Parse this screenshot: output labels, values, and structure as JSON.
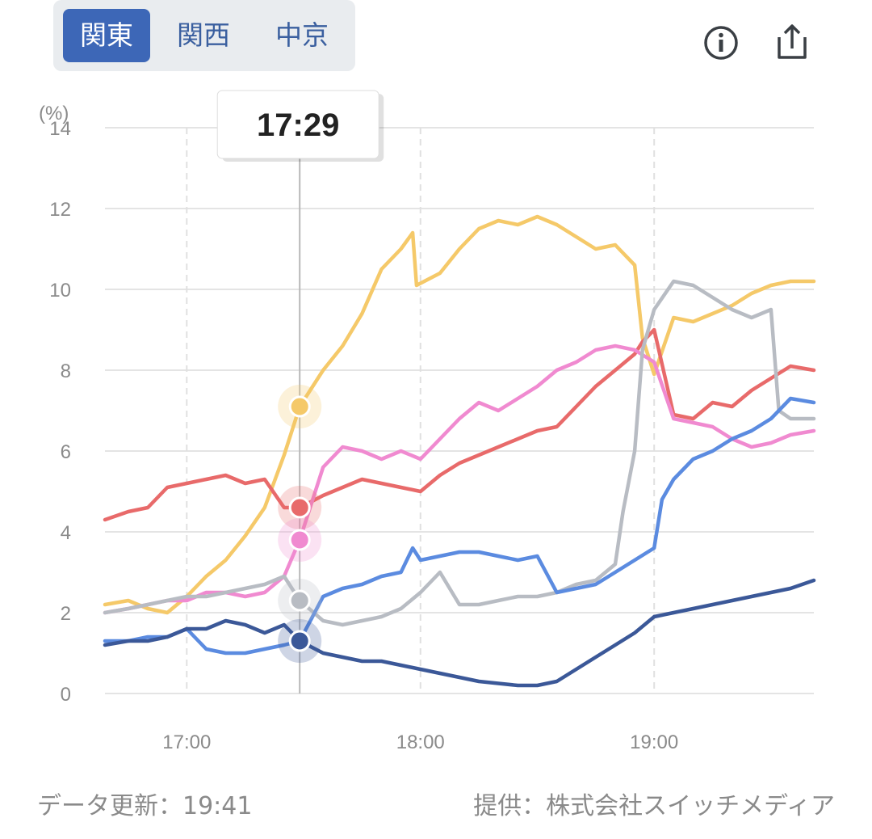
{
  "tabs": [
    {
      "label": "関東",
      "active": true
    },
    {
      "label": "関西",
      "active": false
    },
    {
      "label": "中京",
      "active": false
    }
  ],
  "icons": {
    "info": "info-icon",
    "share": "share-icon"
  },
  "footer": {
    "updated": "データ更新：19:41",
    "provider": "提供：株式会社スイッチメディア"
  },
  "chart_data": {
    "type": "line",
    "ylabel": "(%)",
    "ylim": [
      0,
      14
    ],
    "yticks": [
      0,
      2,
      4,
      6,
      8,
      10,
      12,
      14
    ],
    "xlim": [
      "16:39",
      "19:41"
    ],
    "xticks": [
      "17:00",
      "18:00",
      "19:00"
    ],
    "grid": true,
    "cursor": {
      "time": "17:29",
      "values": [
        7.1,
        4.6,
        3.8,
        2.3,
        1.3
      ]
    },
    "series": [
      {
        "color": "#f5c969",
        "x": [
          "16:39",
          "16:45",
          "16:50",
          "16:55",
          "17:00",
          "17:05",
          "17:10",
          "17:15",
          "17:20",
          "17:25",
          "17:29",
          "17:35",
          "17:40",
          "17:45",
          "17:50",
          "17:55",
          "17:58",
          "17:59",
          "18:05",
          "18:10",
          "18:15",
          "18:20",
          "18:25",
          "18:30",
          "18:35",
          "18:40",
          "18:45",
          "18:50",
          "18:52",
          "18:55",
          "18:57",
          "19:00",
          "19:05",
          "19:10",
          "19:15",
          "19:20",
          "19:25",
          "19:30",
          "19:35",
          "19:41"
        ],
        "values": [
          2.2,
          2.3,
          2.1,
          2.0,
          2.4,
          2.9,
          3.3,
          3.9,
          4.6,
          5.9,
          7.1,
          8.0,
          8.6,
          9.4,
          10.5,
          11.0,
          11.4,
          10.1,
          10.4,
          11.0,
          11.5,
          11.7,
          11.6,
          11.8,
          11.6,
          11.3,
          11.0,
          11.1,
          10.9,
          10.6,
          8.8,
          7.9,
          9.3,
          9.2,
          9.4,
          9.6,
          9.9,
          10.1,
          10.2,
          10.2
        ]
      },
      {
        "color": "#e86a6a",
        "x": [
          "16:39",
          "16:45",
          "16:50",
          "16:55",
          "17:00",
          "17:05",
          "17:10",
          "17:15",
          "17:20",
          "17:25",
          "17:29",
          "17:35",
          "17:40",
          "17:45",
          "17:50",
          "17:55",
          "18:00",
          "18:05",
          "18:10",
          "18:15",
          "18:20",
          "18:25",
          "18:30",
          "18:35",
          "18:40",
          "18:45",
          "18:50",
          "18:55",
          "18:57",
          "19:00",
          "19:05",
          "19:10",
          "19:15",
          "19:20",
          "19:25",
          "19:30",
          "19:35",
          "19:41"
        ],
        "values": [
          4.3,
          4.5,
          4.6,
          5.1,
          5.2,
          5.3,
          5.4,
          5.2,
          5.3,
          4.6,
          4.6,
          4.9,
          5.1,
          5.3,
          5.2,
          5.1,
          5.0,
          5.4,
          5.7,
          5.9,
          6.1,
          6.3,
          6.5,
          6.6,
          7.1,
          7.6,
          8.0,
          8.4,
          8.7,
          9.0,
          6.9,
          6.8,
          7.2,
          7.1,
          7.5,
          7.8,
          8.1,
          8.0
        ]
      },
      {
        "color": "#f08ad0",
        "x": [
          "16:39",
          "16:45",
          "16:50",
          "16:55",
          "17:00",
          "17:05",
          "17:10",
          "17:15",
          "17:20",
          "17:25",
          "17:29",
          "17:35",
          "17:40",
          "17:45",
          "17:50",
          "17:55",
          "18:00",
          "18:05",
          "18:10",
          "18:15",
          "18:20",
          "18:25",
          "18:30",
          "18:35",
          "18:40",
          "18:45",
          "18:50",
          "18:55",
          "19:00",
          "19:05",
          "19:10",
          "19:15",
          "19:20",
          "19:25",
          "19:30",
          "19:35",
          "19:41"
        ],
        "values": [
          2.0,
          2.1,
          2.2,
          2.3,
          2.3,
          2.5,
          2.5,
          2.4,
          2.5,
          2.9,
          3.8,
          5.6,
          6.1,
          6.0,
          5.8,
          6.0,
          5.8,
          6.3,
          6.8,
          7.2,
          7.0,
          7.3,
          7.6,
          8.0,
          8.2,
          8.5,
          8.6,
          8.5,
          8.2,
          6.8,
          6.7,
          6.6,
          6.3,
          6.1,
          6.2,
          6.4,
          6.5
        ]
      },
      {
        "color": "#b8bcc3",
        "x": [
          "16:39",
          "16:45",
          "16:50",
          "16:55",
          "17:00",
          "17:05",
          "17:10",
          "17:15",
          "17:20",
          "17:25",
          "17:29",
          "17:35",
          "17:40",
          "17:45",
          "17:50",
          "17:55",
          "18:00",
          "18:05",
          "18:10",
          "18:15",
          "18:20",
          "18:25",
          "18:30",
          "18:35",
          "18:40",
          "18:45",
          "18:50",
          "18:52",
          "18:55",
          "18:57",
          "19:00",
          "19:05",
          "19:10",
          "19:15",
          "19:20",
          "19:25",
          "19:30",
          "19:32",
          "19:35",
          "19:41"
        ],
        "values": [
          2.0,
          2.1,
          2.2,
          2.3,
          2.4,
          2.4,
          2.5,
          2.6,
          2.7,
          2.9,
          2.3,
          1.8,
          1.7,
          1.8,
          1.9,
          2.1,
          2.5,
          3.0,
          2.2,
          2.2,
          2.3,
          2.4,
          2.4,
          2.5,
          2.7,
          2.8,
          3.2,
          4.5,
          6.0,
          8.5,
          9.5,
          10.2,
          10.1,
          9.8,
          9.5,
          9.3,
          9.5,
          7.0,
          6.8,
          6.8
        ]
      },
      {
        "color": "#5b8be0",
        "x": [
          "16:39",
          "16:45",
          "16:50",
          "16:55",
          "17:00",
          "17:05",
          "17:10",
          "17:15",
          "17:20",
          "17:25",
          "17:29",
          "17:35",
          "17:40",
          "17:45",
          "17:50",
          "17:55",
          "17:58",
          "18:00",
          "18:05",
          "18:10",
          "18:15",
          "18:20",
          "18:25",
          "18:30",
          "18:35",
          "18:40",
          "18:45",
          "18:50",
          "18:55",
          "19:00",
          "19:02",
          "19:05",
          "19:10",
          "19:15",
          "19:20",
          "19:25",
          "19:30",
          "19:35",
          "19:41"
        ],
        "values": [
          1.3,
          1.3,
          1.4,
          1.4,
          1.6,
          1.1,
          1.0,
          1.0,
          1.1,
          1.2,
          1.3,
          2.4,
          2.6,
          2.7,
          2.9,
          3.0,
          3.6,
          3.3,
          3.4,
          3.5,
          3.5,
          3.4,
          3.3,
          3.4,
          2.5,
          2.6,
          2.7,
          3.0,
          3.3,
          3.6,
          4.8,
          5.3,
          5.8,
          6.0,
          6.3,
          6.5,
          6.8,
          7.3,
          7.2
        ]
      },
      {
        "color": "#3b5898",
        "x": [
          "16:39",
          "16:45",
          "16:50",
          "16:55",
          "17:00",
          "17:05",
          "17:10",
          "17:15",
          "17:20",
          "17:25",
          "17:29",
          "17:35",
          "17:40",
          "17:45",
          "17:50",
          "17:55",
          "18:00",
          "18:05",
          "18:10",
          "18:15",
          "18:20",
          "18:25",
          "18:30",
          "18:35",
          "18:40",
          "18:45",
          "18:50",
          "18:55",
          "19:00",
          "19:05",
          "19:10",
          "19:15",
          "19:20",
          "19:25",
          "19:30",
          "19:35",
          "19:41"
        ],
        "values": [
          1.2,
          1.3,
          1.3,
          1.4,
          1.6,
          1.6,
          1.8,
          1.7,
          1.5,
          1.7,
          1.3,
          1.0,
          0.9,
          0.8,
          0.8,
          0.7,
          0.6,
          0.5,
          0.4,
          0.3,
          0.25,
          0.2,
          0.2,
          0.3,
          0.6,
          0.9,
          1.2,
          1.5,
          1.9,
          2.0,
          2.1,
          2.2,
          2.3,
          2.4,
          2.5,
          2.6,
          2.8
        ]
      }
    ]
  }
}
